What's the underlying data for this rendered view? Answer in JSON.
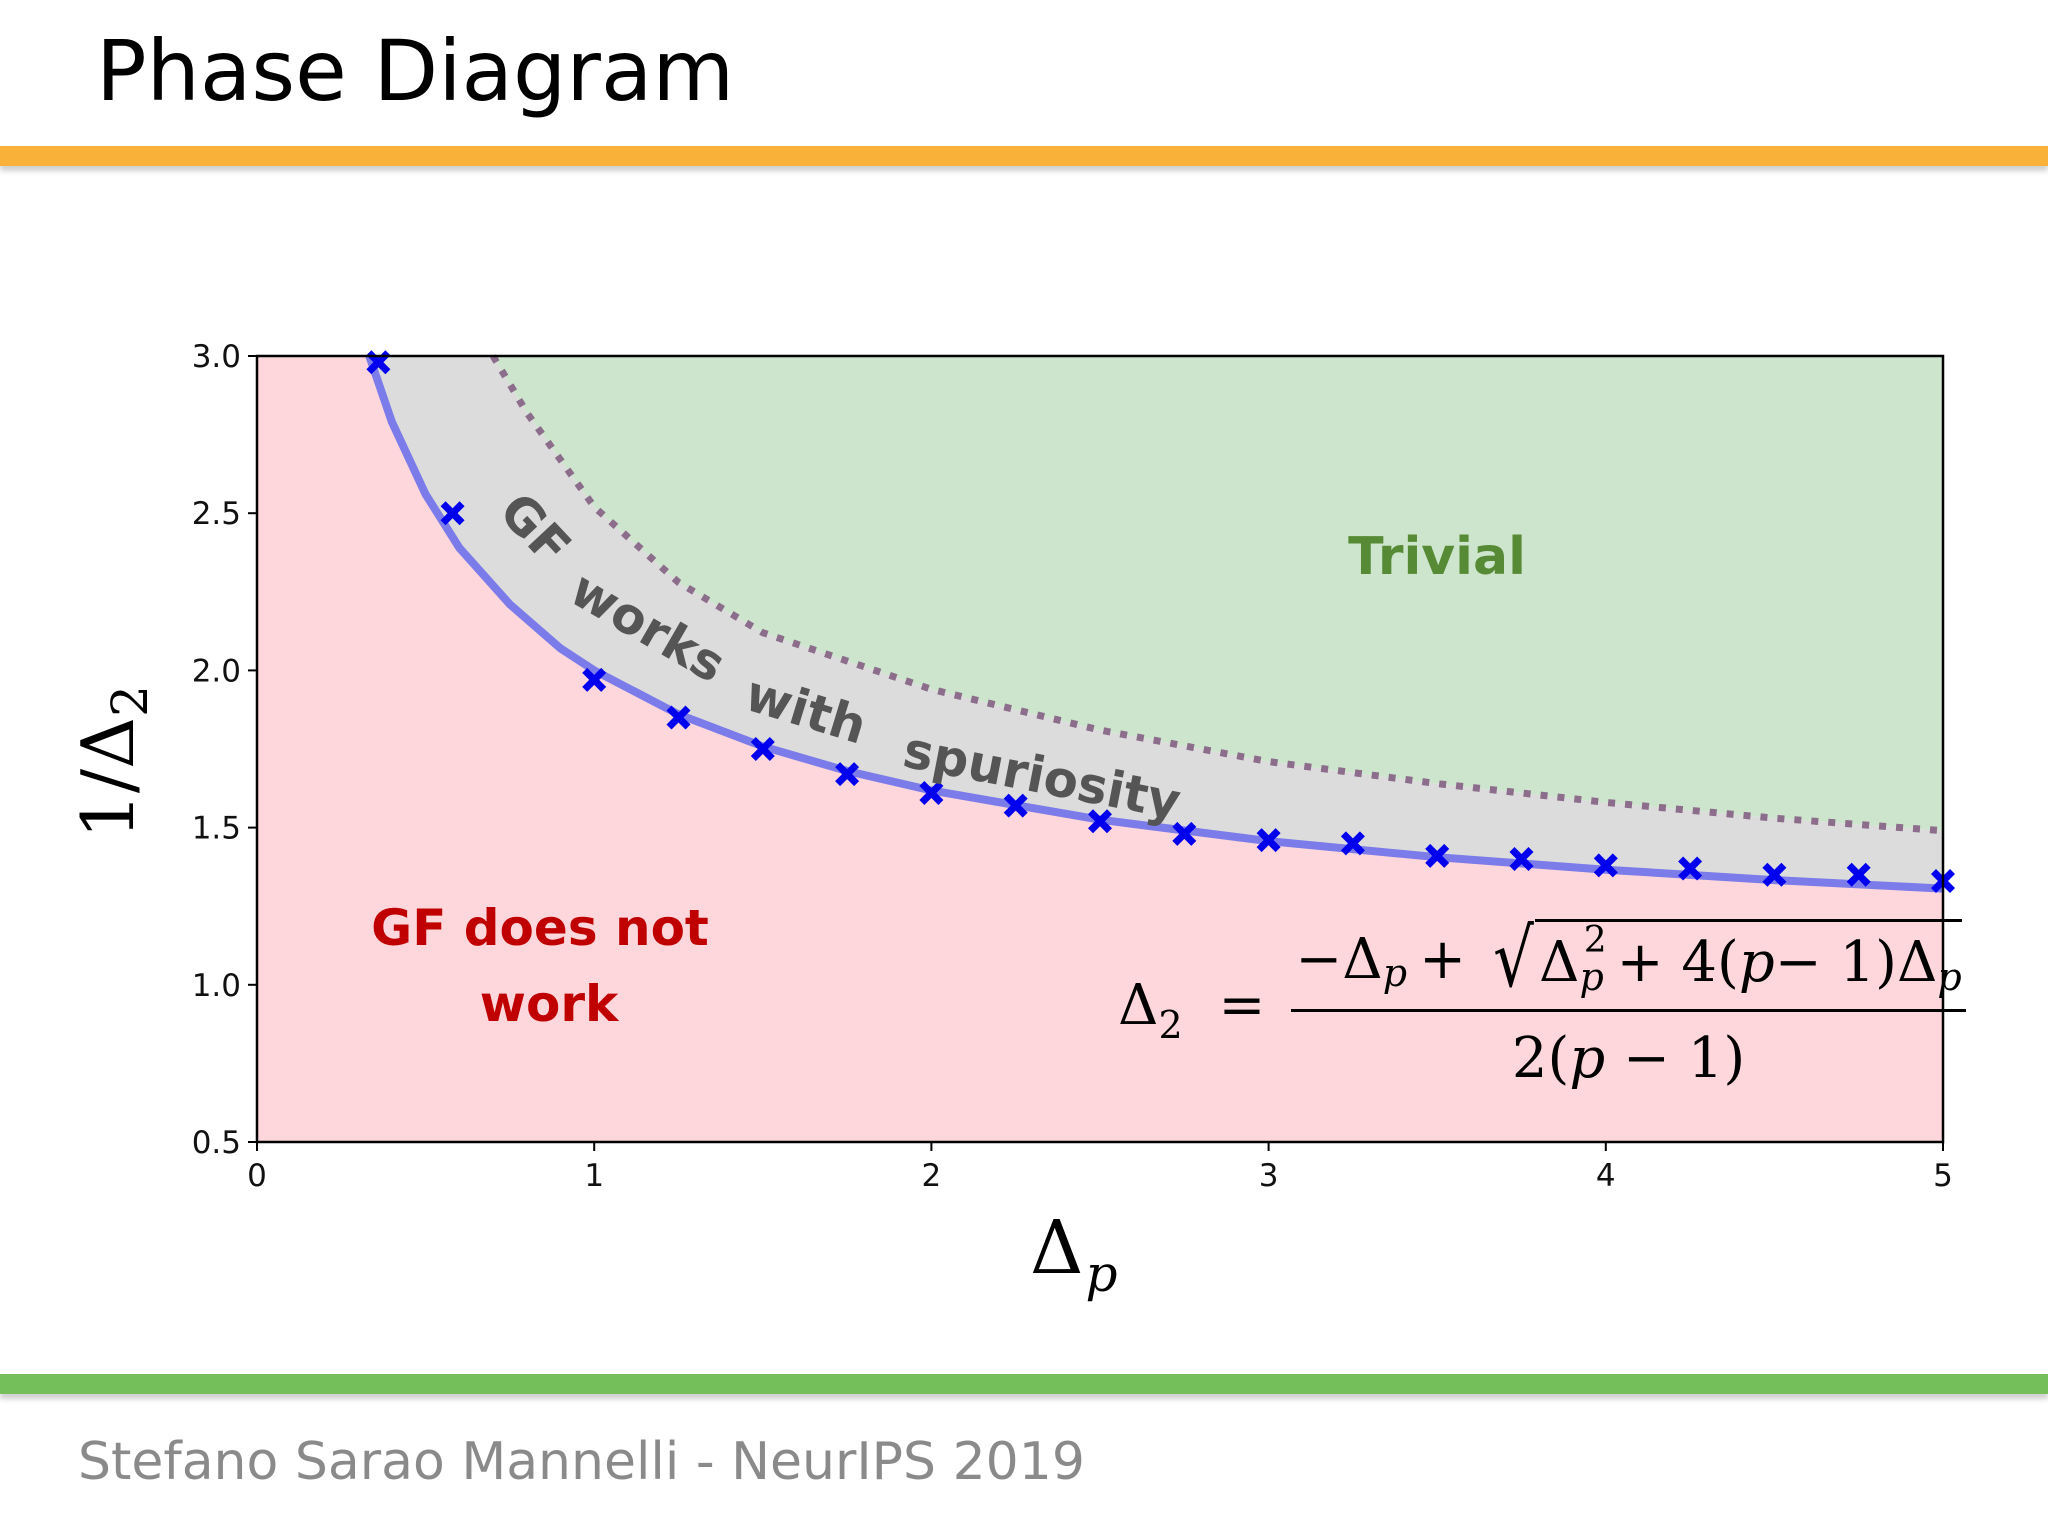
{
  "slide": {
    "title": "Phase Diagram",
    "footer": "Stefano Sarao Mannelli - NeurIPS 2019",
    "colors": {
      "top_bar": "#f9b13a",
      "bottom_bar": "#74bf5a",
      "title": "#000000",
      "footer": "#8a8a8a"
    }
  },
  "chart_data": {
    "type": "line",
    "title": "Phase Diagram",
    "xlabel": "Δp",
    "ylabel": "1/Δ2",
    "xlim": [
      0,
      5
    ],
    "ylim": [
      0.5,
      3.0
    ],
    "grid": false,
    "xticks": [
      0,
      1,
      2,
      3,
      4,
      5
    ],
    "xtick_labels": [
      "0",
      "1",
      "2",
      "3",
      "4",
      "5"
    ],
    "yticks": [
      0.5,
      1.0,
      1.5,
      2.0,
      2.5,
      3.0
    ],
    "ytick_labels": [
      "0.5",
      "1.0",
      "1.5",
      "2.0",
      "2.5",
      "3.0"
    ],
    "series": [
      {
        "name": "theory (solid line)",
        "style": "solid",
        "color": "#7b7bea",
        "x": [
          0.333,
          0.4,
          0.5,
          0.6,
          0.75,
          0.9,
          1.0,
          1.25,
          1.5,
          1.75,
          2.0,
          2.5,
          3.0,
          3.5,
          4.0,
          4.5,
          5.0
        ],
        "y": [
          3.0,
          2.79,
          2.56,
          2.39,
          2.21,
          2.07,
          2.0,
          1.86,
          1.758,
          1.68,
          1.618,
          1.525,
          1.457,
          1.406,
          1.366,
          1.333,
          1.306
        ]
      },
      {
        "name": "GF simulations (markers)",
        "style": "marker-x",
        "color": "#0000ee",
        "x": [
          0.36,
          0.58,
          1.0,
          1.25,
          1.5,
          1.75,
          2.0,
          2.25,
          2.5,
          2.75,
          3.0,
          3.25,
          3.5,
          3.75,
          4.0,
          4.25,
          4.5,
          4.75,
          5.0
        ],
        "y": [
          2.98,
          2.5,
          1.97,
          1.85,
          1.75,
          1.67,
          1.61,
          1.57,
          1.52,
          1.48,
          1.46,
          1.45,
          1.41,
          1.4,
          1.38,
          1.37,
          1.35,
          1.35,
          1.33
        ]
      },
      {
        "name": "trivial threshold (dotted line)",
        "style": "dotted",
        "color": "#8c6d8c",
        "x": [
          0.7,
          0.8,
          1.0,
          1.25,
          1.5,
          2.0,
          2.5,
          3.0,
          3.5,
          4.0,
          4.5,
          5.0
        ],
        "y": [
          3.0,
          2.82,
          2.52,
          2.28,
          2.12,
          1.94,
          1.81,
          1.71,
          1.64,
          1.58,
          1.53,
          1.49
        ]
      }
    ],
    "regions": [
      {
        "name": "GF does not work",
        "color": "#fdd7db",
        "label_color": "#c00000"
      },
      {
        "name": "GF works with spuriosity",
        "color": "#dcdcdc",
        "label_color": "#555555"
      },
      {
        "name": "Trivial",
        "color": "#cde5cc",
        "label_color": "#568a34"
      }
    ],
    "annotations": {
      "trivial": "Trivial",
      "gf_not_line1": "GF does not",
      "gf_not_line2": "work",
      "spurious_words": [
        "GF",
        "works",
        "with",
        "spuriosity"
      ],
      "formula": "Δ2 = (−Δp + sqrt(Δp^2 + 4(p − 1)Δp)) / (2(p − 1))"
    }
  },
  "formula_parts": {
    "lhs_symbol": "Δ",
    "lhs_sub": "2",
    "equals": "=",
    "minus": "−",
    "delta": "Δ",
    "sub_p": "p",
    "plus": "+",
    "radical": "√",
    "sup_2": "2",
    "plus_rest": "+ 4(",
    "p": "p",
    "minus_one": " − 1)",
    "den_open": "2(",
    "den_close": " − 1)"
  },
  "axis_labels": {
    "x_symbol": "Δ",
    "x_sub": "p",
    "y_prefix": "1/Δ",
    "y_sub": "2"
  }
}
